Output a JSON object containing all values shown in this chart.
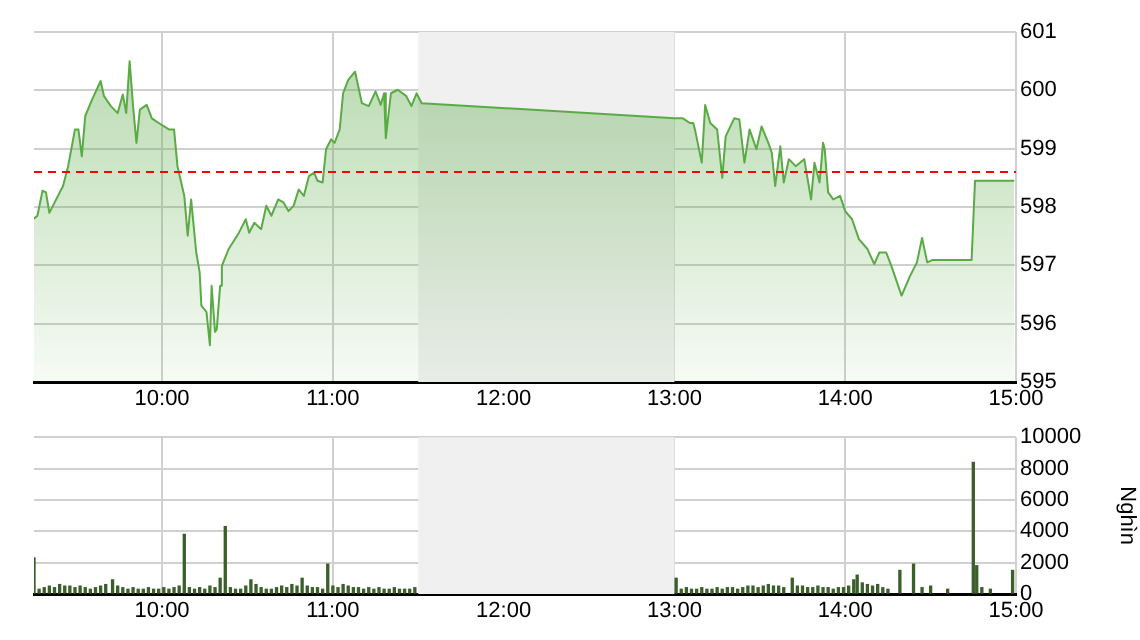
{
  "chart_data": [
    {
      "type": "area",
      "x": [
        9.25,
        9.27,
        9.3,
        9.32,
        9.34,
        9.38,
        9.42,
        9.45,
        9.49,
        9.51,
        9.53,
        9.55,
        9.59,
        9.64,
        9.66,
        9.7,
        9.74,
        9.77,
        9.79,
        9.81,
        9.83,
        9.85,
        9.87,
        9.91,
        9.94,
        9.98,
        10.04,
        10.07,
        10.09,
        10.13,
        10.15,
        10.17,
        10.2,
        10.22,
        10.23,
        10.26,
        10.28,
        10.29,
        10.31,
        10.32,
        10.34,
        10.35,
        10.39,
        10.45,
        10.49,
        10.51,
        10.54,
        10.58,
        10.61,
        10.64,
        10.68,
        10.71,
        10.74,
        10.77,
        10.8,
        10.83,
        10.86,
        10.89,
        10.91,
        10.94,
        10.96,
        10.99,
        11.01,
        11.04,
        11.06,
        11.09,
        11.13,
        11.17,
        11.21,
        11.25,
        11.28,
        11.3,
        11.31,
        11.34,
        11.38,
        11.43,
        11.46,
        11.49,
        11.52,
        13.0,
        13.05,
        13.09,
        13.11,
        13.12,
        13.16,
        13.18,
        13.21,
        13.25,
        13.28,
        13.3,
        13.35,
        13.38,
        13.41,
        13.44,
        13.48,
        13.51,
        13.55,
        13.57,
        13.59,
        13.62,
        13.64,
        13.67,
        13.71,
        13.76,
        13.8,
        13.82,
        13.85,
        13.87,
        13.88,
        13.9,
        13.93,
        13.97,
        14.0,
        14.04,
        14.08,
        14.13,
        14.17,
        14.2,
        14.24,
        14.27,
        14.33,
        14.38,
        14.42,
        14.45,
        14.48,
        14.51,
        14.74,
        14.76,
        14.99
      ],
      "series": [
        {
          "color": "#5aaa46",
          "values": [
            597.8,
            597.85,
            598.28,
            598.25,
            597.9,
            598.13,
            598.36,
            598.7,
            599.33,
            599.33,
            598.87,
            599.56,
            599.84,
            600.16,
            599.9,
            599.73,
            599.61,
            599.93,
            599.61,
            600.5,
            599.73,
            599.1,
            599.67,
            599.75,
            599.52,
            599.44,
            599.33,
            599.33,
            598.7,
            598.19,
            597.51,
            598.13,
            597.22,
            596.88,
            596.31,
            596.2,
            595.63,
            596.65,
            595.86,
            595.9,
            596.65,
            596.99,
            597.28,
            597.56,
            597.79,
            597.56,
            597.73,
            597.62,
            598.02,
            597.85,
            598.13,
            598.08,
            597.93,
            598.02,
            598.3,
            598.19,
            598.53,
            598.59,
            598.45,
            598.42,
            598.99,
            599.16,
            599.1,
            599.33,
            599.95,
            600.18,
            600.32,
            599.78,
            599.73,
            599.98,
            599.75,
            599.95,
            599.18,
            599.95,
            600.01,
            599.9,
            599.73,
            599.95,
            599.78,
            599.52,
            599.52,
            599.44,
            599.44,
            599.33,
            598.76,
            599.75,
            599.44,
            599.33,
            598.5,
            599.21,
            599.52,
            599.5,
            598.76,
            599.33,
            598.99,
            599.38,
            599.1,
            598.93,
            598.36,
            599.04,
            598.42,
            598.82,
            598.7,
            598.82,
            598.13,
            598.76,
            598.42,
            599.1,
            598.99,
            598.25,
            598.13,
            598.19,
            597.93,
            597.79,
            597.45,
            597.28,
            597.02,
            597.22,
            597.22,
            596.99,
            596.48,
            596.82,
            597.05,
            597.47,
            597.05,
            597.09,
            597.09,
            598.45,
            598.45
          ]
        }
      ],
      "xlim": [
        9.25,
        15
      ],
      "xticks": [
        {
          "value": 10,
          "label": "10:00"
        },
        {
          "value": 11,
          "label": "11:00"
        },
        {
          "value": 12,
          "label": "12:00"
        },
        {
          "value": 13,
          "label": "13:00"
        },
        {
          "value": 14,
          "label": "14:00"
        },
        {
          "value": 15,
          "label": "15:00"
        }
      ],
      "ylim": [
        595,
        601
      ],
      "yticks": [
        595,
        596,
        597,
        598,
        599,
        600,
        601
      ],
      "grid": true,
      "marker": "none",
      "ref_lines": [
        {
          "axis": "y",
          "value": 598.6,
          "color": "#ff0000",
          "line_style": "dashed"
        }
      ],
      "bands": [
        {
          "axis": "x",
          "from": 11.5,
          "to": 13,
          "color": "#f0f0f0"
        }
      ]
    },
    {
      "type": "bar",
      "ylabel": "Nghìn",
      "x": [
        9.25,
        9.28,
        9.31,
        9.34,
        9.37,
        9.4,
        9.43,
        9.46,
        9.49,
        9.52,
        9.55,
        9.58,
        9.61,
        9.64,
        9.67,
        9.71,
        9.74,
        9.77,
        9.8,
        9.83,
        9.86,
        9.89,
        9.92,
        9.95,
        9.98,
        10.01,
        10.04,
        10.07,
        10.1,
        10.13,
        10.16,
        10.19,
        10.22,
        10.25,
        10.28,
        10.31,
        10.34,
        10.37,
        10.4,
        10.43,
        10.46,
        10.49,
        10.52,
        10.55,
        10.58,
        10.61,
        10.64,
        10.67,
        10.7,
        10.73,
        10.76,
        10.79,
        10.82,
        10.85,
        10.88,
        10.91,
        10.94,
        10.97,
        11.0,
        11.03,
        11.06,
        11.09,
        11.12,
        11.15,
        11.18,
        11.21,
        11.24,
        11.27,
        11.3,
        11.33,
        11.36,
        11.39,
        11.42,
        11.45,
        11.48,
        13.01,
        13.04,
        13.07,
        13.1,
        13.13,
        13.16,
        13.19,
        13.22,
        13.25,
        13.28,
        13.31,
        13.34,
        13.37,
        13.4,
        13.43,
        13.46,
        13.49,
        13.52,
        13.55,
        13.58,
        13.61,
        13.64,
        13.69,
        13.72,
        13.75,
        13.78,
        13.81,
        13.84,
        13.87,
        13.9,
        13.93,
        13.96,
        13.99,
        14.02,
        14.05,
        14.07,
        14.1,
        14.13,
        14.16,
        14.19,
        14.22,
        14.25,
        14.32,
        14.4,
        14.45,
        14.5,
        14.6,
        14.75,
        14.77,
        14.8,
        14.85,
        14.98
      ],
      "values": [
        2300,
        300,
        400,
        500,
        400,
        600,
        500,
        500,
        400,
        500,
        400,
        300,
        400,
        500,
        600,
        900,
        500,
        400,
        300,
        400,
        300,
        300,
        400,
        300,
        300,
        400,
        300,
        400,
        500,
        3800,
        400,
        300,
        400,
        300,
        500,
        400,
        1000,
        4300,
        400,
        300,
        300,
        500,
        900,
        600,
        400,
        300,
        300,
        400,
        500,
        400,
        600,
        500,
        1000,
        500,
        400,
        400,
        300,
        1900,
        500,
        400,
        600,
        500,
        400,
        400,
        300,
        400,
        300,
        400,
        300,
        300,
        400,
        300,
        300,
        300,
        400,
        1000,
        300,
        400,
        300,
        300,
        400,
        300,
        300,
        400,
        300,
        400,
        400,
        300,
        400,
        500,
        500,
        400,
        500,
        600,
        500,
        500,
        400,
        1000,
        500,
        500,
        400,
        400,
        500,
        400,
        400,
        300,
        400,
        400,
        500,
        900,
        1200,
        700,
        600,
        500,
        600,
        400,
        300,
        1500,
        1900,
        400,
        500,
        300,
        8400,
        1800,
        400,
        300,
        1500
      ],
      "color": "#3a5f2a",
      "xlim": [
        9.25,
        15
      ],
      "xticks": [
        {
          "value": 10,
          "label": "10:00"
        },
        {
          "value": 11,
          "label": "11:00"
        },
        {
          "value": 12,
          "label": "12:00"
        },
        {
          "value": 13,
          "label": "13:00"
        },
        {
          "value": 14,
          "label": "14:00"
        },
        {
          "value": 15,
          "label": "15:00"
        }
      ],
      "ylim": [
        0,
        10000
      ],
      "yticks": [
        0,
        2000,
        4000,
        6000,
        8000,
        10000
      ],
      "grid": true,
      "bands": [
        {
          "axis": "x",
          "from": 11.5,
          "to": 13,
          "color": "#f0f0f0"
        }
      ]
    }
  ]
}
